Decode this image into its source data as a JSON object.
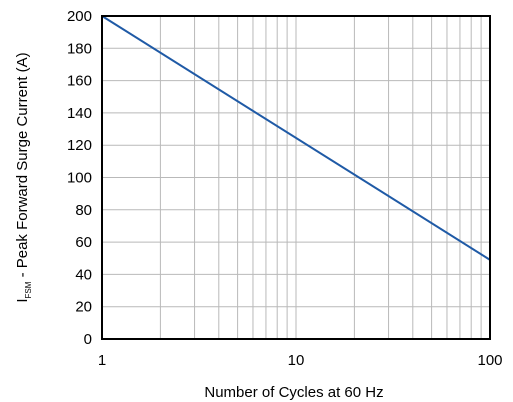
{
  "chart_data": {
    "type": "line",
    "xscale": "log",
    "xlim": [
      1,
      100
    ],
    "ylim": [
      0,
      200
    ],
    "x_ticks": [
      {
        "value": 1,
        "label": "1"
      },
      {
        "value": 10,
        "label": "10"
      },
      {
        "value": 100,
        "label": "100"
      }
    ],
    "y_ticks": [
      {
        "value": 0,
        "label": "0"
      },
      {
        "value": 20,
        "label": "20"
      },
      {
        "value": 40,
        "label": "40"
      },
      {
        "value": 60,
        "label": "60"
      },
      {
        "value": 80,
        "label": "80"
      },
      {
        "value": 100,
        "label": "100"
      },
      {
        "value": 120,
        "label": "120"
      },
      {
        "value": 140,
        "label": "140"
      },
      {
        "value": 160,
        "label": "160"
      },
      {
        "value": 180,
        "label": "180"
      },
      {
        "value": 200,
        "label": "200"
      }
    ],
    "xlabel": "Number of Cycles at 60 Hz",
    "ylabel": {
      "symbol": "I",
      "subscript": "FSM",
      "text": " - Peak Forward Surge Current (A)"
    },
    "grid": true,
    "series": [
      {
        "color": "#1f5aa6",
        "x": [
          1,
          100
        ],
        "y": [
          200,
          49
        ]
      }
    ]
  }
}
